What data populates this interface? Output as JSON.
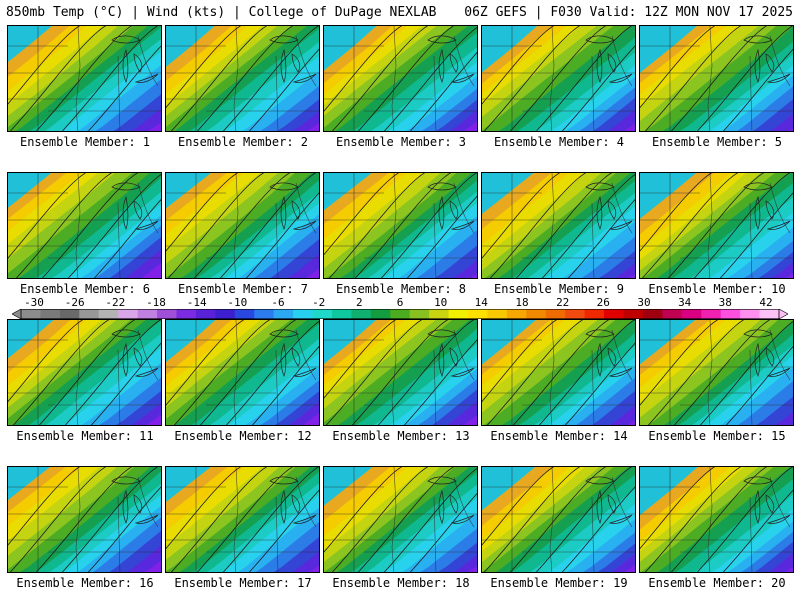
{
  "header": {
    "left": "850mb Temp (°C) | Wind (kts) | College of DuPage NEXLAB",
    "right": "06Z GEFS | F030 Valid: 12Z MON NOV 17 2025"
  },
  "colorbar": {
    "tick_labels": [
      "-30",
      "-26",
      "-22",
      "-18",
      "-14",
      "-10",
      "-6",
      "-2",
      "2",
      "6",
      "10",
      "14",
      "18",
      "22",
      "26",
      "30",
      "34",
      "38",
      "42"
    ],
    "palette": [
      "#8c8c8c",
      "#7a7a7a",
      "#696969",
      "#999999",
      "#b3b3b3",
      "#d9a6e8",
      "#c080e0",
      "#a050d8",
      "#7c2ce0",
      "#5a22d8",
      "#3c20d0",
      "#2848e0",
      "#2c7cf0",
      "#2ca8f0",
      "#28d0f0",
      "#20d8c8",
      "#10c8a0",
      "#10b070",
      "#149c40",
      "#4cac20",
      "#88c020",
      "#c8d410",
      "#f0f000",
      "#ffe000",
      "#f8c800",
      "#f4a800",
      "#f08800",
      "#f06c00",
      "#f04c10",
      "#f02800",
      "#e00000",
      "#c00000",
      "#a00010",
      "#c00050",
      "#d80080",
      "#f020b0",
      "#ff50e0",
      "#ff90f0",
      "#ffc0f8"
    ]
  },
  "panels": [
    {
      "label": "Ensemble Member: 1"
    },
    {
      "label": "Ensemble Member: 2"
    },
    {
      "label": "Ensemble Member: 3"
    },
    {
      "label": "Ensemble Member: 4"
    },
    {
      "label": "Ensemble Member: 5"
    },
    {
      "label": "Ensemble Member: 6"
    },
    {
      "label": "Ensemble Member: 7"
    },
    {
      "label": "Ensemble Member: 8"
    },
    {
      "label": "Ensemble Member: 9"
    },
    {
      "label": "Ensemble Member: 10"
    },
    {
      "label": "Ensemble Member: 11"
    },
    {
      "label": "Ensemble Member: 12"
    },
    {
      "label": "Ensemble Member: 13"
    },
    {
      "label": "Ensemble Member: 14"
    },
    {
      "label": "Ensemble Member: 15"
    },
    {
      "label": "Ensemble Member: 16"
    },
    {
      "label": "Ensemble Member: 17"
    },
    {
      "label": "Ensemble Member: 18"
    },
    {
      "label": "Ensemble Member: 19"
    },
    {
      "label": "Ensemble Member: 20"
    }
  ]
}
